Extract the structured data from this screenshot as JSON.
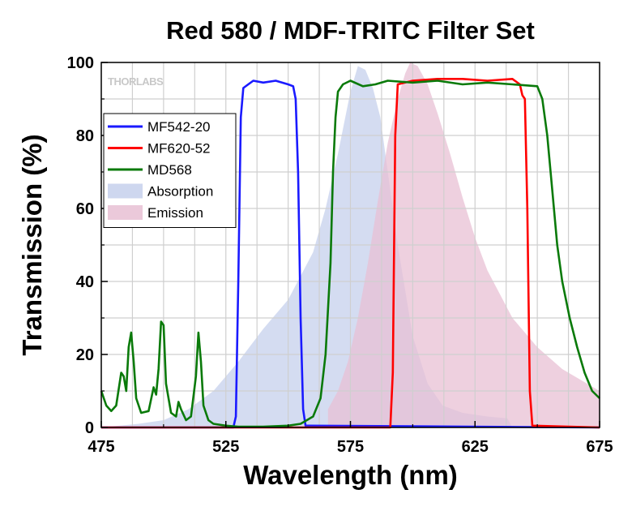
{
  "chart_data": {
    "type": "line",
    "title": "Red 580 / MDF-TRITC Filter Set",
    "xlabel": "Wavelength (nm)",
    "ylabel": "Transmission (%)",
    "xlim": [
      475,
      675
    ],
    "ylim": [
      0,
      100
    ],
    "x_ticks": [
      475,
      525,
      575,
      625,
      675
    ],
    "y_ticks": [
      0,
      20,
      40,
      60,
      80,
      100
    ],
    "grid": true,
    "legend_position": "left",
    "watermark": "THORLABS",
    "series": [
      {
        "name": "MF542-20",
        "kind": "line",
        "color": "#1a1aff",
        "points": [
          [
            475,
            0
          ],
          [
            528,
            0
          ],
          [
            529,
            3
          ],
          [
            530,
            40
          ],
          [
            531,
            85
          ],
          [
            532,
            93
          ],
          [
            534,
            94
          ],
          [
            536,
            95
          ],
          [
            540,
            94.5
          ],
          [
            545,
            95
          ],
          [
            550,
            94
          ],
          [
            552,
            93.5
          ],
          [
            553,
            90
          ],
          [
            554,
            70
          ],
          [
            555,
            30
          ],
          [
            556,
            5
          ],
          [
            557,
            0.5
          ],
          [
            675,
            0
          ]
        ]
      },
      {
        "name": "MF620-52",
        "kind": "line",
        "color": "#ff0000",
        "points": [
          [
            475,
            0
          ],
          [
            591,
            0
          ],
          [
            592,
            15
          ],
          [
            593,
            80
          ],
          [
            594,
            94
          ],
          [
            600,
            95
          ],
          [
            610,
            95.5
          ],
          [
            620,
            95.5
          ],
          [
            630,
            95
          ],
          [
            640,
            95.5
          ],
          [
            643,
            94
          ],
          [
            644,
            91
          ],
          [
            645,
            90
          ],
          [
            646,
            60
          ],
          [
            647,
            10
          ],
          [
            648,
            0.5
          ],
          [
            675,
            0
          ]
        ]
      },
      {
        "name": "MD568",
        "kind": "line",
        "color": "#0a7a0a",
        "points": [
          [
            475,
            10
          ],
          [
            477,
            6
          ],
          [
            479,
            4.5
          ],
          [
            481,
            6
          ],
          [
            483,
            15
          ],
          [
            484,
            14
          ],
          [
            485,
            10
          ],
          [
            486,
            22
          ],
          [
            487,
            26
          ],
          [
            488,
            18
          ],
          [
            489,
            8
          ],
          [
            491,
            4
          ],
          [
            494,
            4.5
          ],
          [
            496,
            11
          ],
          [
            497,
            9
          ],
          [
            498,
            16
          ],
          [
            499,
            29
          ],
          [
            500,
            28
          ],
          [
            501,
            12
          ],
          [
            503,
            4
          ],
          [
            505,
            3
          ],
          [
            506,
            7
          ],
          [
            507,
            5
          ],
          [
            509,
            2
          ],
          [
            511,
            3
          ],
          [
            513,
            14
          ],
          [
            514,
            26
          ],
          [
            515,
            18
          ],
          [
            516,
            6
          ],
          [
            518,
            2
          ],
          [
            520,
            1
          ],
          [
            525,
            0.5
          ],
          [
            530,
            0.2
          ],
          [
            540,
            0.2
          ],
          [
            550,
            0.5
          ],
          [
            555,
            1
          ],
          [
            560,
            3
          ],
          [
            563,
            8
          ],
          [
            565,
            20
          ],
          [
            567,
            45
          ],
          [
            568,
            70
          ],
          [
            569,
            85
          ],
          [
            570,
            92
          ],
          [
            572,
            94
          ],
          [
            575,
            95
          ],
          [
            580,
            93.5
          ],
          [
            585,
            94
          ],
          [
            590,
            95
          ],
          [
            600,
            94.5
          ],
          [
            610,
            95
          ],
          [
            620,
            94
          ],
          [
            630,
            94.5
          ],
          [
            640,
            94
          ],
          [
            650,
            93.5
          ],
          [
            652,
            90
          ],
          [
            654,
            80
          ],
          [
            656,
            65
          ],
          [
            658,
            50
          ],
          [
            660,
            40
          ],
          [
            663,
            30
          ],
          [
            666,
            22
          ],
          [
            669,
            15
          ],
          [
            672,
            10
          ],
          [
            675,
            8
          ]
        ]
      },
      {
        "name": "Absorption",
        "kind": "area",
        "color": "#c5d0ec",
        "points": [
          [
            475,
            0
          ],
          [
            490,
            1
          ],
          [
            500,
            2
          ],
          [
            510,
            5
          ],
          [
            520,
            10
          ],
          [
            530,
            18
          ],
          [
            540,
            27
          ],
          [
            550,
            35
          ],
          [
            560,
            48
          ],
          [
            565,
            60
          ],
          [
            570,
            75
          ],
          [
            575,
            92
          ],
          [
            578,
            99
          ],
          [
            581,
            98
          ],
          [
            584,
            93
          ],
          [
            587,
            85
          ],
          [
            590,
            70
          ],
          [
            594,
            50
          ],
          [
            600,
            25
          ],
          [
            606,
            12
          ],
          [
            612,
            6
          ],
          [
            620,
            4
          ],
          [
            630,
            3
          ],
          [
            638,
            2.5
          ],
          [
            640,
            0
          ],
          [
            675,
            0
          ]
        ]
      },
      {
        "name": "Emission",
        "kind": "area",
        "color": "#e8c0d4",
        "points": [
          [
            566,
            0
          ],
          [
            566,
            5
          ],
          [
            570,
            10
          ],
          [
            574,
            18
          ],
          [
            578,
            30
          ],
          [
            582,
            45
          ],
          [
            586,
            62
          ],
          [
            590,
            78
          ],
          [
            594,
            90
          ],
          [
            597,
            97
          ],
          [
            599,
            100
          ],
          [
            602,
            99
          ],
          [
            606,
            94
          ],
          [
            610,
            86
          ],
          [
            615,
            75
          ],
          [
            620,
            63
          ],
          [
            625,
            52
          ],
          [
            630,
            43
          ],
          [
            640,
            30
          ],
          [
            650,
            22
          ],
          [
            660,
            16
          ],
          [
            670,
            12
          ],
          [
            675,
            10
          ],
          [
            675,
            0
          ]
        ]
      }
    ]
  }
}
